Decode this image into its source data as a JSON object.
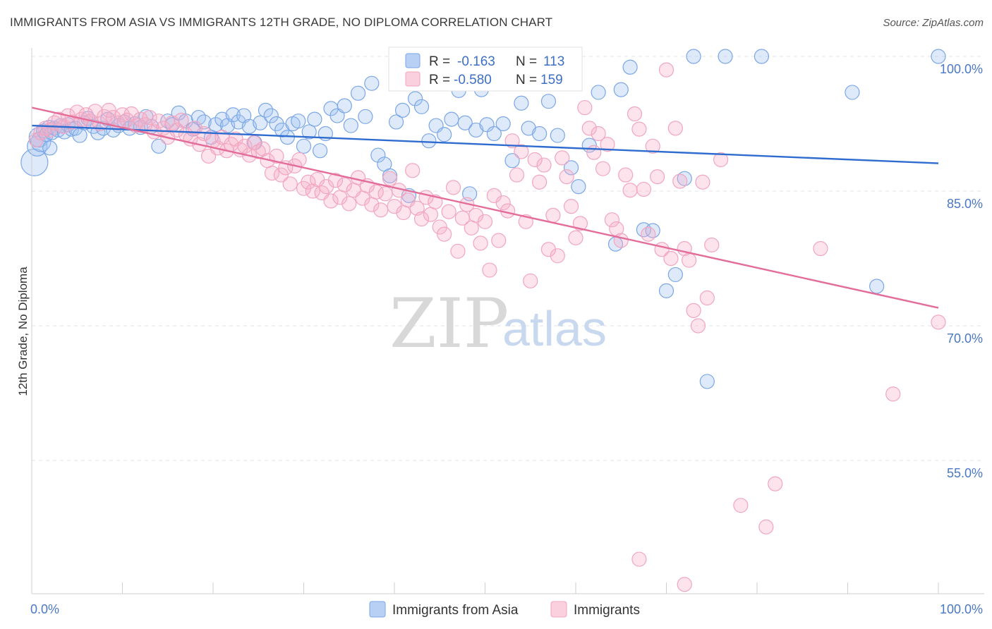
{
  "title": "IMMIGRANTS FROM ASIA VS IMMIGRANTS 12TH GRADE, NO DIPLOMA CORRELATION CHART",
  "source": "Source: ZipAtlas.com",
  "watermark": {
    "zip": "ZIP",
    "atlas": "atlas"
  },
  "chart_data": {
    "type": "scatter",
    "ylabel": "12th Grade, No Diploma",
    "xlim": [
      0,
      100
    ],
    "ylim": [
      41,
      102
    ],
    "x_tick_labels": {
      "left": "0.0%",
      "right": "100.0%"
    },
    "y_ticks": [
      {
        "value": 100,
        "label": "100.0%"
      },
      {
        "value": 85,
        "label": "85.0%"
      },
      {
        "value": 70,
        "label": "70.0%"
      },
      {
        "value": 55,
        "label": "55.0%"
      }
    ],
    "grid": "horizontal dashed",
    "legend_placement": "top-center",
    "series": [
      {
        "name": "Immigrants from Asia",
        "color": "#7aa6e8",
        "line_color": "#2f6ccf",
        "r_label": "R =",
        "r_value": "-0.163",
        "n_label": "N =",
        "n_value": "113",
        "trend": {
          "x": [
            0,
            100
          ],
          "y": [
            92.3,
            88.1
          ]
        },
        "points": [
          [
            0.3,
            88.2
          ],
          [
            0.6,
            90.0
          ],
          [
            0.8,
            91.0
          ],
          [
            1.0,
            90.5
          ],
          [
            1.3,
            91.7
          ],
          [
            1.6,
            91.3
          ],
          [
            1.9,
            92.1
          ],
          [
            2.2,
            91.5
          ],
          [
            2.5,
            92.0
          ],
          [
            2.9,
            91.8
          ],
          [
            3.2,
            92.3
          ],
          [
            3.6,
            91.6
          ],
          [
            4.0,
            92.4
          ],
          [
            4.4,
            91.9
          ],
          [
            4.8,
            92.0
          ],
          [
            5.3,
            91.2
          ],
          [
            5.8,
            92.6
          ],
          [
            6.2,
            93.1
          ],
          [
            6.8,
            92.2
          ],
          [
            7.3,
            91.5
          ],
          [
            7.9,
            92.0
          ],
          [
            8.4,
            93.0
          ],
          [
            9.0,
            91.8
          ],
          [
            9.6,
            92.3
          ],
          [
            10.2,
            92.7
          ],
          [
            10.8,
            92.0
          ],
          [
            11.4,
            92.5
          ],
          [
            12.0,
            92.1
          ],
          [
            12.6,
            93.3
          ],
          [
            13.2,
            92.2
          ],
          [
            14.0,
            90.0
          ],
          [
            15.0,
            92.8
          ],
          [
            15.5,
            92.4
          ],
          [
            16.2,
            93.7
          ],
          [
            17.0,
            92.8
          ],
          [
            17.8,
            91.9
          ],
          [
            18.4,
            93.2
          ],
          [
            19.0,
            92.7
          ],
          [
            19.8,
            91.0
          ],
          [
            20.3,
            92.4
          ],
          [
            21.0,
            93.0
          ],
          [
            21.6,
            92.3
          ],
          [
            22.2,
            93.5
          ],
          [
            22.8,
            92.7
          ],
          [
            23.4,
            93.4
          ],
          [
            24.0,
            92.2
          ],
          [
            24.6,
            90.4
          ],
          [
            25.2,
            92.6
          ],
          [
            25.8,
            94.0
          ],
          [
            26.4,
            93.4
          ],
          [
            27.0,
            92.5
          ],
          [
            27.6,
            91.8
          ],
          [
            28.2,
            91.0
          ],
          [
            28.8,
            92.5
          ],
          [
            29.4,
            92.8
          ],
          [
            30.0,
            90.0
          ],
          [
            30.6,
            91.6
          ],
          [
            31.2,
            93.0
          ],
          [
            31.8,
            89.5
          ],
          [
            32.4,
            91.4
          ],
          [
            33.0,
            94.2
          ],
          [
            33.7,
            93.4
          ],
          [
            34.5,
            94.5
          ],
          [
            35.2,
            92.3
          ],
          [
            36.0,
            95.9
          ],
          [
            36.8,
            93.3
          ],
          [
            37.5,
            97.0
          ],
          [
            38.2,
            89.0
          ],
          [
            38.9,
            88.0
          ],
          [
            39.5,
            86.7
          ],
          [
            40.2,
            92.7
          ],
          [
            40.9,
            94.0
          ],
          [
            41.6,
            84.5
          ],
          [
            42.3,
            95.3
          ],
          [
            43.0,
            94.4
          ],
          [
            43.8,
            90.6
          ],
          [
            44.6,
            92.3
          ],
          [
            45.5,
            91.3
          ],
          [
            46.3,
            93.0
          ],
          [
            47.1,
            96.2
          ],
          [
            47.8,
            92.6
          ],
          [
            48.3,
            84.7
          ],
          [
            49.0,
            91.8
          ],
          [
            49.6,
            96.3
          ],
          [
            50.2,
            92.4
          ],
          [
            51.0,
            91.4
          ],
          [
            52.0,
            92.5
          ],
          [
            53.0,
            88.4
          ],
          [
            54.0,
            94.8
          ],
          [
            54.8,
            92.0
          ],
          [
            56.0,
            91.4
          ],
          [
            57.0,
            95.0
          ],
          [
            58.0,
            91.2
          ],
          [
            59.5,
            87.6
          ],
          [
            60.3,
            85.5
          ],
          [
            61.5,
            90.1
          ],
          [
            62.5,
            96.0
          ],
          [
            64.4,
            79.1
          ],
          [
            65.0,
            96.3
          ],
          [
            66.0,
            98.8
          ],
          [
            67.5,
            80.7
          ],
          [
            68.5,
            80.6
          ],
          [
            70.0,
            73.9
          ],
          [
            71.0,
            75.7
          ],
          [
            72.0,
            86.4
          ],
          [
            73.0,
            100.0
          ],
          [
            74.5,
            63.8
          ],
          [
            76.5,
            100.0
          ],
          [
            80.5,
            100.0
          ],
          [
            90.5,
            96.0
          ],
          [
            93.2,
            74.4
          ],
          [
            100.0,
            100.0
          ],
          [
            2.0,
            89.8
          ]
        ]
      },
      {
        "name": "Immigrants",
        "color": "#f2a5bf",
        "line_color": "#e46c98",
        "r_label": "R =",
        "r_value": "-0.580",
        "n_label": "N =",
        "n_value": "159",
        "trend": {
          "x": [
            0,
            100
          ],
          "y": [
            94.3,
            72.0
          ]
        },
        "points": [
          [
            0.5,
            90.7
          ],
          [
            1.0,
            91.5
          ],
          [
            1.5,
            92.0
          ],
          [
            2.0,
            91.8
          ],
          [
            2.5,
            92.6
          ],
          [
            3.0,
            93.0
          ],
          [
            3.5,
            92.2
          ],
          [
            4.0,
            93.4
          ],
          [
            4.5,
            92.7
          ],
          [
            5.0,
            93.8
          ],
          [
            5.5,
            93.0
          ],
          [
            6.0,
            93.5
          ],
          [
            6.5,
            92.8
          ],
          [
            7.0,
            93.9
          ],
          [
            7.5,
            92.5
          ],
          [
            8.0,
            93.3
          ],
          [
            8.5,
            94.0
          ],
          [
            9.0,
            93.2
          ],
          [
            9.5,
            92.6
          ],
          [
            10.0,
            93.5
          ],
          [
            10.5,
            92.9
          ],
          [
            11.0,
            93.6
          ],
          [
            11.5,
            92.3
          ],
          [
            12.0,
            93.0
          ],
          [
            12.5,
            92.4
          ],
          [
            13.0,
            93.2
          ],
          [
            13.5,
            91.6
          ],
          [
            14.0,
            92.8
          ],
          [
            14.5,
            92.0
          ],
          [
            15.0,
            91.0
          ],
          [
            15.5,
            92.6
          ],
          [
            16.0,
            91.8
          ],
          [
            16.5,
            92.9
          ],
          [
            17.0,
            91.3
          ],
          [
            17.5,
            90.8
          ],
          [
            18.0,
            92.0
          ],
          [
            18.5,
            90.2
          ],
          [
            19.0,
            91.4
          ],
          [
            19.5,
            88.9
          ],
          [
            20.0,
            90.6
          ],
          [
            20.5,
            89.8
          ],
          [
            21.0,
            91.0
          ],
          [
            21.5,
            89.5
          ],
          [
            22.0,
            90.2
          ],
          [
            22.5,
            90.8
          ],
          [
            23.0,
            89.6
          ],
          [
            23.5,
            90.0
          ],
          [
            24.0,
            89.0
          ],
          [
            24.5,
            90.4
          ],
          [
            25.0,
            89.4
          ],
          [
            25.5,
            89.7
          ],
          [
            26.0,
            88.4
          ],
          [
            26.5,
            87.0
          ],
          [
            27.0,
            88.9
          ],
          [
            27.5,
            86.8
          ],
          [
            28.0,
            87.6
          ],
          [
            28.5,
            85.8
          ],
          [
            29.0,
            87.8
          ],
          [
            29.5,
            88.5
          ],
          [
            30.0,
            85.3
          ],
          [
            30.5,
            86.0
          ],
          [
            31.0,
            85.0
          ],
          [
            31.5,
            86.3
          ],
          [
            32.0,
            84.8
          ],
          [
            32.5,
            85.5
          ],
          [
            33.0,
            83.9
          ],
          [
            33.5,
            86.2
          ],
          [
            34.0,
            84.3
          ],
          [
            34.5,
            85.7
          ],
          [
            35.0,
            83.6
          ],
          [
            35.5,
            85.1
          ],
          [
            36.0,
            86.5
          ],
          [
            36.5,
            84.2
          ],
          [
            37.0,
            85.6
          ],
          [
            37.5,
            83.5
          ],
          [
            38.0,
            84.9
          ],
          [
            38.5,
            82.9
          ],
          [
            39.0,
            84.7
          ],
          [
            39.5,
            86.4
          ],
          [
            40.0,
            83.3
          ],
          [
            40.5,
            85.1
          ],
          [
            41.0,
            82.6
          ],
          [
            41.5,
            84.0
          ],
          [
            42.0,
            87.3
          ],
          [
            42.5,
            83.1
          ],
          [
            43.0,
            81.9
          ],
          [
            43.5,
            84.3
          ],
          [
            44.0,
            82.4
          ],
          [
            44.5,
            83.8
          ],
          [
            45.0,
            81.0
          ],
          [
            45.5,
            80.2
          ],
          [
            46.0,
            82.7
          ],
          [
            46.5,
            85.4
          ],
          [
            47.0,
            78.3
          ],
          [
            47.5,
            82.0
          ],
          [
            48.0,
            83.5
          ],
          [
            48.5,
            80.9
          ],
          [
            49.0,
            82.3
          ],
          [
            49.5,
            79.2
          ],
          [
            50.0,
            81.6
          ],
          [
            50.5,
            76.2
          ],
          [
            51.0,
            84.5
          ],
          [
            51.5,
            79.5
          ],
          [
            52.0,
            83.7
          ],
          [
            52.5,
            82.8
          ],
          [
            53.0,
            90.6
          ],
          [
            53.5,
            86.8
          ],
          [
            54.0,
            89.4
          ],
          [
            54.5,
            81.6
          ],
          [
            55.0,
            75.0
          ],
          [
            55.5,
            88.5
          ],
          [
            56.0,
            86.0
          ],
          [
            56.5,
            87.9
          ],
          [
            57.0,
            78.5
          ],
          [
            57.5,
            82.3
          ],
          [
            58.0,
            77.8
          ],
          [
            58.5,
            88.7
          ],
          [
            59.0,
            86.6
          ],
          [
            59.5,
            83.3
          ],
          [
            60.0,
            79.8
          ],
          [
            60.5,
            81.4
          ],
          [
            61.0,
            94.3
          ],
          [
            61.5,
            92.0
          ],
          [
            62.0,
            89.3
          ],
          [
            62.5,
            91.4
          ],
          [
            63.0,
            87.5
          ],
          [
            63.5,
            90.2
          ],
          [
            64.0,
            81.8
          ],
          [
            64.5,
            80.8
          ],
          [
            65.0,
            79.5
          ],
          [
            65.5,
            86.8
          ],
          [
            66.0,
            85.1
          ],
          [
            66.5,
            93.6
          ],
          [
            67.0,
            91.9
          ],
          [
            67.5,
            85.2
          ],
          [
            68.0,
            80.2
          ],
          [
            68.5,
            90.0
          ],
          [
            69.0,
            86.6
          ],
          [
            69.5,
            78.5
          ],
          [
            70.0,
            98.5
          ],
          [
            70.5,
            77.5
          ],
          [
            71.0,
            92.0
          ],
          [
            71.5,
            86.1
          ],
          [
            72.0,
            78.6
          ],
          [
            72.5,
            77.3
          ],
          [
            73.0,
            71.7
          ],
          [
            73.5,
            70.0
          ],
          [
            74.0,
            86.0
          ],
          [
            74.5,
            73.1
          ],
          [
            75.0,
            79.0
          ],
          [
            76.0,
            88.5
          ],
          [
            78.2,
            50.0
          ],
          [
            81.0,
            47.6
          ],
          [
            82.0,
            52.4
          ],
          [
            87.0,
            78.6
          ],
          [
            95.0,
            62.4
          ],
          [
            100.0,
            70.4
          ],
          [
            67.0,
            44.0
          ],
          [
            72.0,
            41.2
          ]
        ]
      }
    ]
  }
}
